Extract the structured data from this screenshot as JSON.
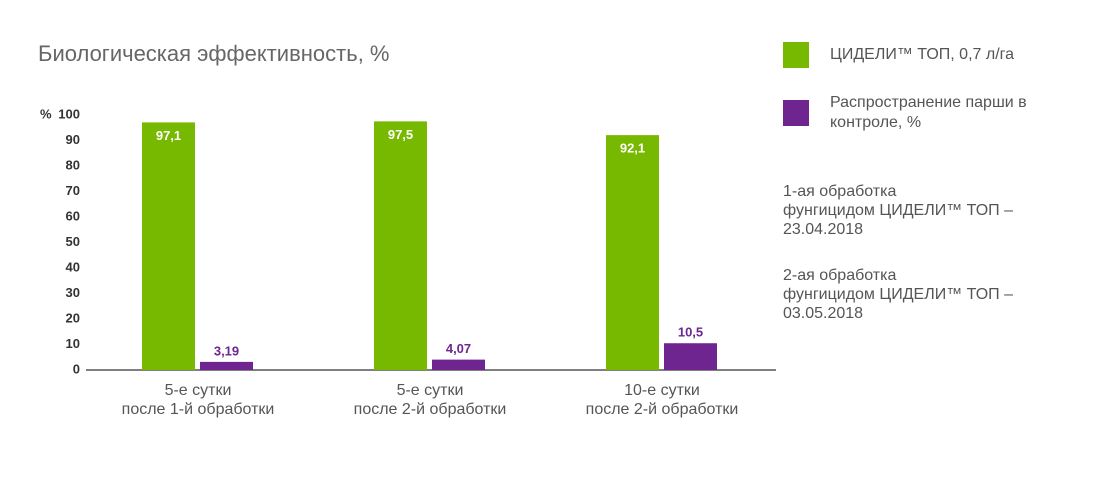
{
  "chart_data": {
    "type": "bar",
    "title": "Биологическая эффективность, %",
    "y_label": "%",
    "categories": [
      "5-е сутки\nпосле 1-й обработки",
      "5-е сутки\nпосле 2-й обработки",
      "10-е сутки\nпосле 2-й обработки"
    ],
    "series": [
      {
        "name": "ЦИДЕЛИ™ ТОП, 0,7 л/га",
        "color": "#77b800",
        "values": [
          97.1,
          97.5,
          92.1
        ],
        "value_labels": [
          "97,1",
          "97,5",
          "92,1"
        ]
      },
      {
        "name": "Распространение парши в контроле, %",
        "color": "#6e2590",
        "values": [
          3.19,
          4.07,
          10.5
        ],
        "value_labels": [
          "3,19",
          "4,07",
          "10,5"
        ]
      }
    ],
    "ylim": [
      0,
      100
    ],
    "yticks": [
      0,
      10,
      20,
      30,
      40,
      50,
      60,
      70,
      80,
      90,
      100
    ],
    "grid": false,
    "notes": [
      "1-ая обработка\nфунгицидом ЦИДЕЛИ™ ТОП –\n23.04.2018",
      "2-ая обработка\nфунгицидом ЦИДЕЛИ™ ТОП –\n03.05.2018"
    ]
  }
}
